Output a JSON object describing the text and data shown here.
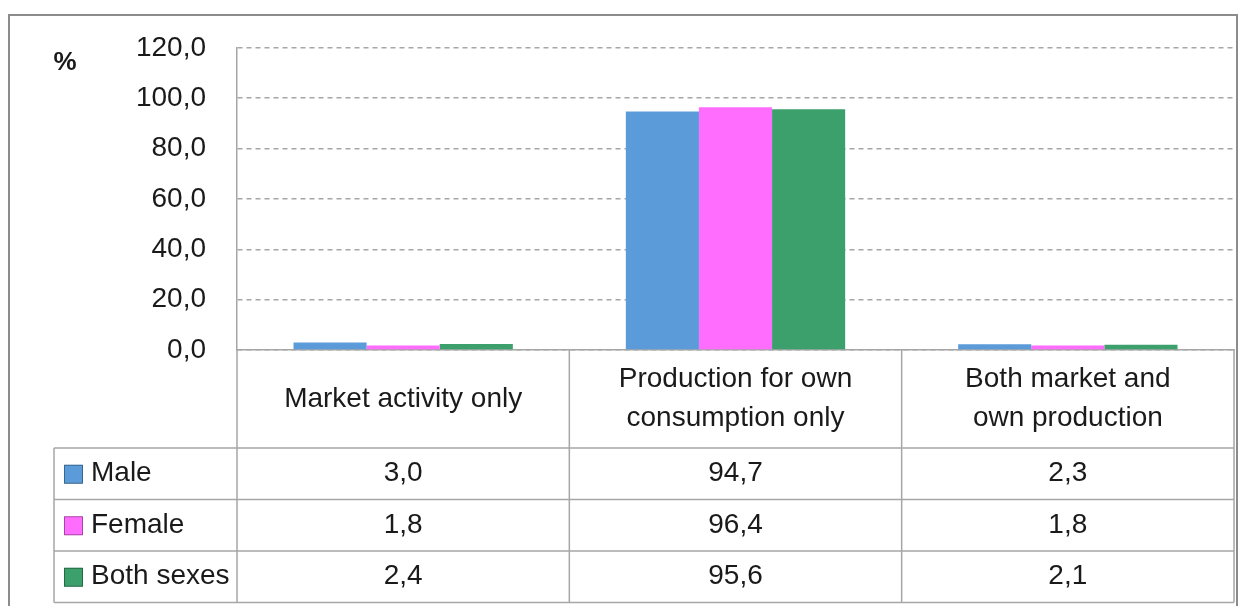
{
  "chart_data": {
    "type": "bar",
    "ylabel": "%",
    "categories": [
      "Market activity only",
      "Production for own consumption only",
      "Both market and own production"
    ],
    "series": [
      {
        "name": "Male",
        "color": "#5b9bd9",
        "values": [
          3.0,
          94.7,
          2.3
        ],
        "value_labels": [
          "3,0",
          "94,7",
          "2,3"
        ]
      },
      {
        "name": "Female",
        "color": "#ff6dff",
        "values": [
          1.8,
          96.4,
          1.8
        ],
        "value_labels": [
          "1,8",
          "96,4",
          "1,8"
        ]
      },
      {
        "name": "Both sexes",
        "color": "#3ca06c",
        "values": [
          2.4,
          95.6,
          2.1
        ],
        "value_labels": [
          "2,4",
          "95,6",
          "2,1"
        ]
      }
    ],
    "ylim": [
      0,
      120
    ],
    "yticks": [
      {
        "value": 0,
        "label": "0,0"
      },
      {
        "value": 20,
        "label": "20,0"
      },
      {
        "value": 40,
        "label": "40,0"
      },
      {
        "value": 60,
        "label": "60,0"
      },
      {
        "value": 80,
        "label": "80,0"
      },
      {
        "value": 100,
        "label": "100,0"
      },
      {
        "value": 120,
        "label": "120,0"
      }
    ],
    "grid": "y",
    "legend": "bottom"
  }
}
